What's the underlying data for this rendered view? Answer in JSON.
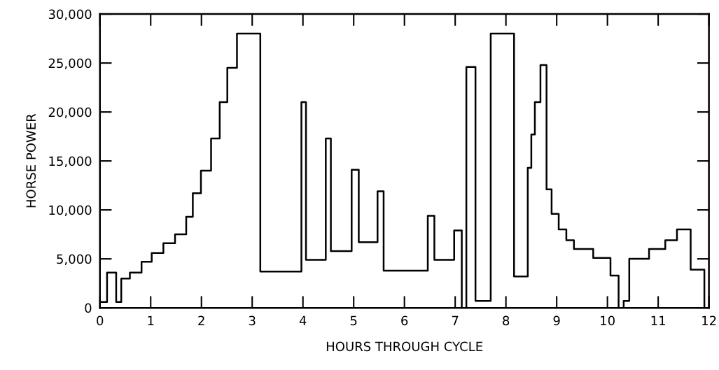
{
  "chart_data": {
    "type": "step",
    "xlabel": "HOURS THROUGH CYCLE",
    "ylabel": "HORSE POWER",
    "xlim": [
      0,
      12
    ],
    "xticks": [
      0,
      1,
      2,
      3,
      4,
      5,
      6,
      7,
      8,
      9,
      10,
      11,
      12
    ],
    "ylim": [
      0,
      30000
    ],
    "yticks": [
      0,
      {
        "value": 5000,
        "label": "5,000"
      },
      {
        "value": 10000,
        "label": "10,000"
      },
      {
        "value": 15000,
        "label": "15,000"
      },
      {
        "value": 20000,
        "label": "20,000"
      },
      {
        "value": 25000,
        "label": "25,000"
      },
      {
        "value": 30000,
        "label": "30,000"
      }
    ],
    "grid": false,
    "legend": false,
    "marker": "none",
    "line_style": "solid",
    "series": [
      {
        "color": "#000000",
        "x": [
          0,
          0.14,
          0.32,
          0.42,
          0.59,
          0.82,
          1.02,
          1.25,
          1.48,
          1.7,
          1.83,
          1.99,
          2.19,
          2.36,
          2.51,
          2.7,
          3.16,
          3.97,
          4.06,
          4.45,
          4.55,
          4.96,
          5.1,
          5.47,
          5.59,
          6.46,
          6.59,
          6.98,
          7.13,
          7.22,
          7.4,
          7.7,
          8.16,
          8.43,
          8.5,
          8.57,
          8.68,
          8.8,
          8.9,
          9.04,
          9.19,
          9.34,
          9.72,
          10.06,
          10.22,
          10.32,
          10.43,
          10.82,
          11.14,
          11.37,
          11.64,
          11.91,
          12
        ],
        "values": [
          600,
          3600,
          600,
          3000,
          3600,
          4700,
          5600,
          6600,
          7500,
          9300,
          11700,
          14000,
          17300,
          21000,
          24500,
          28000,
          3700,
          21000,
          4900,
          17300,
          5800,
          14100,
          6700,
          11900,
          3800,
          9400,
          4900,
          7900,
          0,
          24600,
          700,
          28000,
          3200,
          14300,
          17700,
          21000,
          24800,
          12100,
          9600,
          8000,
          6900,
          6000,
          5100,
          3300,
          0,
          700,
          5000,
          6000,
          6900,
          8000,
          3900,
          0,
          0
        ]
      }
    ]
  }
}
